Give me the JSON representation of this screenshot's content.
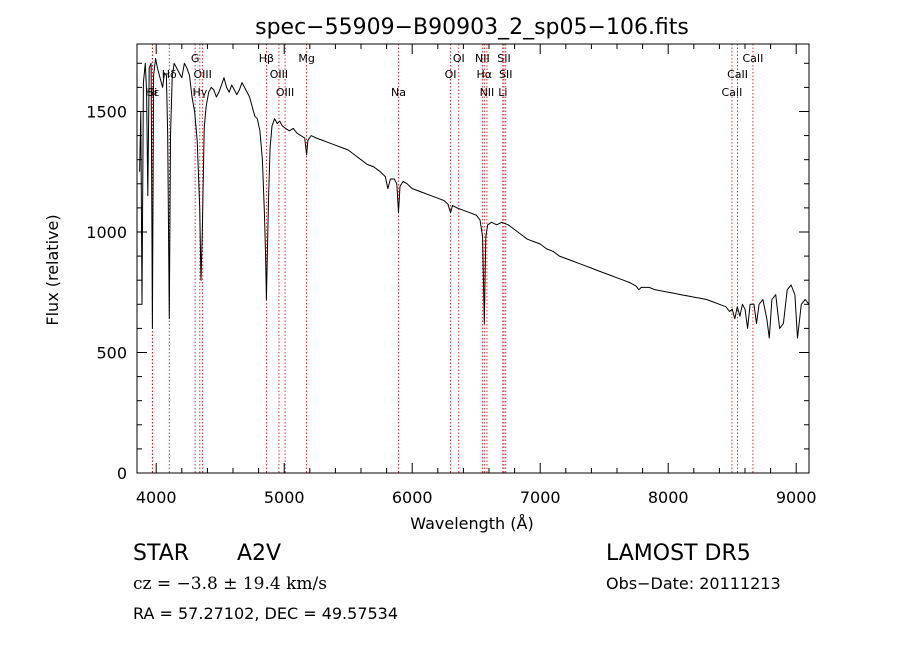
{
  "chart_data": {
    "type": "line",
    "title": "spec−55909−B90903_2_sp05−106.fits",
    "xlabel": "Wavelength (Å)",
    "ylabel": "Flux (relative)",
    "xlim": [
      3850,
      9100
    ],
    "ylim": [
      0,
      1780
    ],
    "xticks": [
      4000,
      5000,
      6000,
      7000,
      8000,
      9000
    ],
    "yticks": [
      0,
      500,
      1000,
      1500
    ],
    "grid": false,
    "series": [
      {
        "points": [
          [
            3870,
            1250
          ],
          [
            3880,
            1500
          ],
          [
            3889,
            700
          ],
          [
            3900,
            1620
          ],
          [
            3915,
            1700
          ],
          [
            3925,
            1580
          ],
          [
            3934,
            1150
          ],
          [
            3945,
            1680
          ],
          [
            3960,
            1700
          ],
          [
            3970,
            600
          ],
          [
            3980,
            1650
          ],
          [
            3995,
            1720
          ],
          [
            4010,
            1680
          ],
          [
            4030,
            1640
          ],
          [
            4050,
            1600
          ],
          [
            4065,
            1660
          ],
          [
            4080,
            1650
          ],
          [
            4090,
            1400
          ],
          [
            4102,
            640
          ],
          [
            4112,
            1400
          ],
          [
            4125,
            1640
          ],
          [
            4140,
            1700
          ],
          [
            4160,
            1680
          ],
          [
            4180,
            1660
          ],
          [
            4200,
            1640
          ],
          [
            4220,
            1700
          ],
          [
            4240,
            1680
          ],
          [
            4260,
            1650
          ],
          [
            4280,
            1560
          ],
          [
            4300,
            1500
          ],
          [
            4320,
            1380
          ],
          [
            4340,
            1100
          ],
          [
            4350,
            800
          ],
          [
            4360,
            1000
          ],
          [
            4375,
            1430
          ],
          [
            4390,
            1520
          ],
          [
            4410,
            1580
          ],
          [
            4430,
            1600
          ],
          [
            4450,
            1590
          ],
          [
            4470,
            1560
          ],
          [
            4490,
            1580
          ],
          [
            4510,
            1610
          ],
          [
            4530,
            1640
          ],
          [
            4550,
            1600
          ],
          [
            4570,
            1580
          ],
          [
            4590,
            1610
          ],
          [
            4610,
            1590
          ],
          [
            4630,
            1570
          ],
          [
            4650,
            1590
          ],
          [
            4670,
            1620
          ],
          [
            4690,
            1600
          ],
          [
            4710,
            1580
          ],
          [
            4730,
            1560
          ],
          [
            4750,
            1520
          ],
          [
            4770,
            1480
          ],
          [
            4790,
            1470
          ],
          [
            4810,
            1420
          ],
          [
            4830,
            1300
          ],
          [
            4845,
            1080
          ],
          [
            4855,
            900
          ],
          [
            4861,
            720
          ],
          [
            4868,
            900
          ],
          [
            4878,
            1150
          ],
          [
            4890,
            1350
          ],
          [
            4905,
            1440
          ],
          [
            4925,
            1470
          ],
          [
            4945,
            1450
          ],
          [
            4965,
            1460
          ],
          [
            4985,
            1440
          ],
          [
            5010,
            1430
          ],
          [
            5040,
            1420
          ],
          [
            5070,
            1430
          ],
          [
            5100,
            1410
          ],
          [
            5130,
            1400
          ],
          [
            5160,
            1390
          ],
          [
            5175,
            1320
          ],
          [
            5185,
            1380
          ],
          [
            5210,
            1400
          ],
          [
            5250,
            1390
          ],
          [
            5300,
            1380
          ],
          [
            5350,
            1370
          ],
          [
            5400,
            1360
          ],
          [
            5450,
            1350
          ],
          [
            5500,
            1340
          ],
          [
            5550,
            1320
          ],
          [
            5600,
            1300
          ],
          [
            5650,
            1280
          ],
          [
            5700,
            1270
          ],
          [
            5750,
            1250
          ],
          [
            5790,
            1230
          ],
          [
            5810,
            1180
          ],
          [
            5830,
            1220
          ],
          [
            5860,
            1220
          ],
          [
            5880,
            1200
          ],
          [
            5893,
            1080
          ],
          [
            5905,
            1190
          ],
          [
            5930,
            1210
          ],
          [
            5960,
            1200
          ],
          [
            6000,
            1180
          ],
          [
            6050,
            1170
          ],
          [
            6100,
            1160
          ],
          [
            6150,
            1150
          ],
          [
            6200,
            1140
          ],
          [
            6250,
            1130
          ],
          [
            6280,
            1115
          ],
          [
            6300,
            1080
          ],
          [
            6315,
            1110
          ],
          [
            6350,
            1100
          ],
          [
            6400,
            1090
          ],
          [
            6450,
            1080
          ],
          [
            6500,
            1070
          ],
          [
            6530,
            1050
          ],
          [
            6550,
            980
          ],
          [
            6563,
            620
          ],
          [
            6575,
            980
          ],
          [
            6590,
            1030
          ],
          [
            6620,
            1040
          ],
          [
            6660,
            1030
          ],
          [
            6700,
            1040
          ],
          [
            6750,
            1030
          ],
          [
            6800,
            1010
          ],
          [
            6850,
            990
          ],
          [
            6900,
            970
          ],
          [
            6950,
            960
          ],
          [
            7000,
            950
          ],
          [
            7050,
            930
          ],
          [
            7100,
            920
          ],
          [
            7150,
            900
          ],
          [
            7200,
            890
          ],
          [
            7250,
            880
          ],
          [
            7300,
            870
          ],
          [
            7350,
            860
          ],
          [
            7400,
            850
          ],
          [
            7450,
            840
          ],
          [
            7500,
            830
          ],
          [
            7550,
            820
          ],
          [
            7600,
            810
          ],
          [
            7650,
            800
          ],
          [
            7700,
            790
          ],
          [
            7750,
            775
          ],
          [
            7770,
            760
          ],
          [
            7790,
            770
          ],
          [
            7850,
            770
          ],
          [
            7900,
            760
          ],
          [
            7950,
            755
          ],
          [
            8000,
            750
          ],
          [
            8050,
            745
          ],
          [
            8100,
            740
          ],
          [
            8150,
            735
          ],
          [
            8200,
            730
          ],
          [
            8250,
            725
          ],
          [
            8300,
            720
          ],
          [
            8350,
            710
          ],
          [
            8400,
            700
          ],
          [
            8450,
            690
          ],
          [
            8480,
            670
          ],
          [
            8500,
            680
          ],
          [
            8520,
            640
          ],
          [
            8540,
            690
          ],
          [
            8560,
            650
          ],
          [
            8580,
            700
          ],
          [
            8600,
            680
          ],
          [
            8620,
            600
          ],
          [
            8640,
            700
          ],
          [
            8670,
            700
          ],
          [
            8690,
            620
          ],
          [
            8710,
            700
          ],
          [
            8740,
            720
          ],
          [
            8770,
            640
          ],
          [
            8790,
            560
          ],
          [
            8810,
            720
          ],
          [
            8840,
            740
          ],
          [
            8870,
            600
          ],
          [
            8900,
            620
          ],
          [
            8930,
            760
          ],
          [
            8960,
            780
          ],
          [
            8990,
            740
          ],
          [
            9010,
            560
          ],
          [
            9040,
            700
          ],
          [
            9070,
            720
          ],
          [
            9100,
            700
          ]
        ]
      }
    ],
    "line_markers": [
      {
        "label": "Hε",
        "x": 3970,
        "row": 3
      },
      {
        "label": "Si",
        "x": 3970,
        "row": 3
      },
      {
        "label": "Hδ",
        "x": 4102,
        "row": 2
      },
      {
        "label": "G",
        "x": 4304,
        "row": 1
      },
      {
        "label": "OIII",
        "x": 4363,
        "row": 2
      },
      {
        "label": "Hγ",
        "x": 4341,
        "row": 3
      },
      {
        "label": "Hβ",
        "x": 4861,
        "row": 1
      },
      {
        "label": "OIII",
        "x": 4959,
        "row": 2
      },
      {
        "label": "OIII",
        "x": 5007,
        "row": 3
      },
      {
        "label": "Mg",
        "x": 5175,
        "row": 1
      },
      {
        "label": "Na",
        "x": 5893,
        "row": 3
      },
      {
        "label": "OI",
        "x": 6300,
        "row": 2
      },
      {
        "label": "OI",
        "x": 6364,
        "row": 1
      },
      {
        "label": "NII",
        "x": 6548,
        "row": 1
      },
      {
        "label": "Hα",
        "x": 6563,
        "row": 2
      },
      {
        "label": "NII",
        "x": 6584,
        "row": 3
      },
      {
        "label": "SII",
        "x": 6717,
        "row": 1
      },
      {
        "label": "SII",
        "x": 6731,
        "row": 2
      },
      {
        "label": "Li",
        "x": 6708,
        "row": 3
      },
      {
        "label": "CaII",
        "x": 8498,
        "row": 3
      },
      {
        "label": "CaII",
        "x": 8542,
        "row": 2
      },
      {
        "label": "CaII",
        "x": 8662,
        "row": 1
      }
    ],
    "colors": {
      "line": "#000000",
      "marker": "#cc0000",
      "axis": "#000000"
    }
  },
  "info": {
    "class": "STAR",
    "subclass": "A2V",
    "survey": "LAMOST DR5",
    "cz": "cz = −3.8 ± 19.4 km/s",
    "obs_date": "Obs−Date: 20111213",
    "coords": "RA =  57.27102, DEC =  49.57534"
  }
}
